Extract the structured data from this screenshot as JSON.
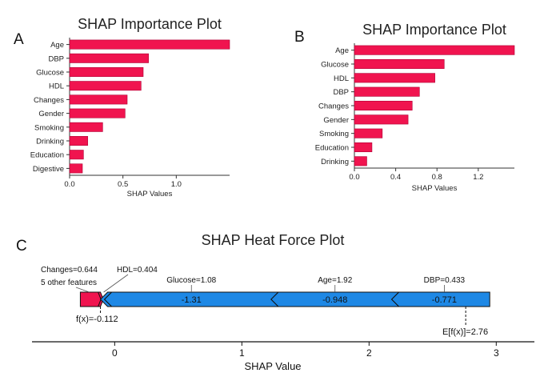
{
  "colors": {
    "bar": "#f0144f",
    "bar_edge": "#b00035",
    "force_pos": "#f0144f",
    "force_neg": "#1e88e5",
    "axis": "#333333"
  },
  "chart_data": [
    {
      "type": "bar",
      "orientation": "horizontal",
      "panel": "A",
      "title": "SHAP Importance Plot",
      "xlabel": "SHAP Values",
      "categories": [
        "Age",
        "DBP",
        "Glucose",
        "HDL",
        "Changes",
        "Gender",
        "Smoking",
        "Drinking",
        "Education",
        "Digestive"
      ],
      "values": [
        1.5,
        0.74,
        0.69,
        0.67,
        0.54,
        0.52,
        0.31,
        0.17,
        0.13,
        0.12
      ],
      "xlim": [
        0,
        1.5
      ],
      "xticks": [
        0.0,
        0.5,
        1.0
      ],
      "xtick_labels": [
        "0.0",
        "0.5",
        "1.0"
      ]
    },
    {
      "type": "bar",
      "orientation": "horizontal",
      "panel": "B",
      "title": "SHAP Importance Plot",
      "xlabel": "SHAP Values",
      "categories": [
        "Age",
        "Glucose",
        "HDL",
        "DBP",
        "Changes",
        "Gender",
        "Smoking",
        "Education",
        "Drinking"
      ],
      "values": [
        1.55,
        0.87,
        0.78,
        0.63,
        0.56,
        0.52,
        0.27,
        0.17,
        0.12
      ],
      "xlim": [
        0,
        1.55
      ],
      "xticks": [
        0.0,
        0.4,
        0.8,
        1.2
      ],
      "xtick_labels": [
        "0.0",
        "0.4",
        "0.8",
        "1.2"
      ]
    },
    {
      "type": "force",
      "panel": "C",
      "title": "SHAP Heat Force Plot",
      "xlabel": "SHAP Value",
      "xlim": [
        -0.65,
        3.3
      ],
      "xticks": [
        0,
        1,
        2,
        3
      ],
      "xtick_labels": [
        "0",
        "1",
        "2",
        "3"
      ],
      "output_value": -0.112,
      "output_label": "f(x)=-0.112",
      "base_value": 2.76,
      "base_label": "E[f(x)]=2.76",
      "positive_segments": [
        {
          "label": "Changes=0.644",
          "from": -0.27,
          "to": -0.13
        },
        {
          "label": "5 other features",
          "from": -0.13,
          "to": -0.112
        }
      ],
      "negative_segments": [
        {
          "label": "HDL=0.404",
          "from": -0.112,
          "to": -0.08,
          "value_text": ""
        },
        {
          "label": "Glucose=1.08",
          "from": -0.08,
          "to": 1.23,
          "value_text": "-1.31"
        },
        {
          "label": "Age=1.92",
          "from": 1.23,
          "to": 2.178,
          "value_text": "-0.948"
        },
        {
          "label": "DBP=0.433",
          "from": 2.178,
          "to": 2.949,
          "value_text": "-0.771"
        }
      ]
    }
  ]
}
